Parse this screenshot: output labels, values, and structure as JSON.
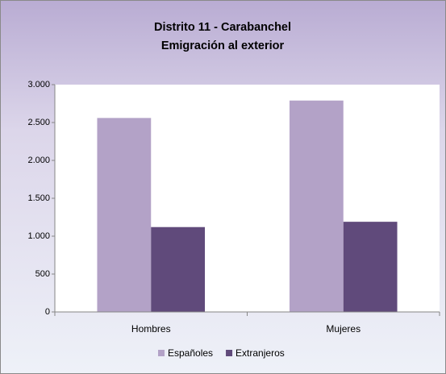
{
  "chart_data": {
    "type": "bar",
    "title": "Distrito 11 - Carabanchel",
    "subtitle": "Emigración al exterior",
    "categories": [
      "Hombres",
      "Mujeres"
    ],
    "series": [
      {
        "name": "Españoles",
        "color": "#b3a2c7",
        "values": [
          2560,
          2790
        ]
      },
      {
        "name": "Extranjeros",
        "color": "#604a7b",
        "values": [
          1120,
          1190
        ]
      }
    ],
    "ylim": [
      0,
      3000
    ],
    "yticks": [
      0,
      500,
      {
        "value": 1000,
        "label": "1.000"
      },
      {
        "value": 1500,
        "label": "1.500"
      },
      {
        "value": 2000,
        "label": "2.000"
      },
      {
        "value": 2500,
        "label": "2.500"
      },
      {
        "value": 3000,
        "label": "3.000"
      }
    ],
    "grid": false,
    "legend": "bottom"
  }
}
